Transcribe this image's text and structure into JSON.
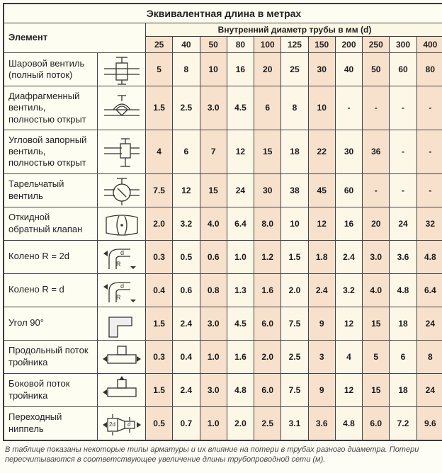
{
  "title": "Эквивалентная длина в метрах",
  "row_header": "Элемент",
  "col_group_header": "Внутренний диаметр трубы в мм (d)",
  "diameters": [
    "25",
    "40",
    "50",
    "80",
    "100",
    "125",
    "150",
    "200",
    "250",
    "300",
    "400"
  ],
  "rows": [
    {
      "name": "Шаровой вентиль (полный поток)",
      "icon": "ball-valve",
      "values": [
        "5",
        "8",
        "10",
        "16",
        "20",
        "25",
        "30",
        "40",
        "50",
        "60",
        "80"
      ]
    },
    {
      "name": "Диафрагменный вентиль, полностью открыт",
      "icon": "diaphragm-valve",
      "values": [
        "1.5",
        "2.5",
        "3.0",
        "4.5",
        "6",
        "8",
        "10",
        "-",
        "-",
        "-",
        "-"
      ]
    },
    {
      "name": "Угловой запорный вентиль, полностью открыт",
      "icon": "angle-valve",
      "values": [
        "4",
        "6",
        "7",
        "12",
        "15",
        "18",
        "22",
        "30",
        "36",
        "-",
        "-"
      ]
    },
    {
      "name": "Тарельчатый вентиль",
      "icon": "poppet-valve",
      "values": [
        "7.5",
        "12",
        "15",
        "24",
        "30",
        "38",
        "45",
        "60",
        "-",
        "-",
        "-"
      ]
    },
    {
      "name": "Откидной обратный клапан",
      "icon": "check-valve",
      "values": [
        "2.0",
        "3.2",
        "4.0",
        "6.4",
        "8.0",
        "10",
        "12",
        "16",
        "20",
        "24",
        "32"
      ]
    },
    {
      "name": "Колено R = 2d",
      "icon": "elbow-r2d",
      "values": [
        "0.3",
        "0.5",
        "0.6",
        "1.0",
        "1.2",
        "1.5",
        "1.8",
        "2.4",
        "3.0",
        "3.6",
        "4.8"
      ]
    },
    {
      "name": "Колено R = d",
      "icon": "elbow-rd",
      "values": [
        "0.4",
        "0.6",
        "0.8",
        "1.3",
        "1.6",
        "2.0",
        "2.4",
        "3.2",
        "4.0",
        "4.8",
        "6.4"
      ]
    },
    {
      "name": "Угол 90°",
      "icon": "angle-90",
      "values": [
        "1.5",
        "2.4",
        "3.0",
        "4.5",
        "6.0",
        "7.5",
        "9",
        "12",
        "15",
        "18",
        "24"
      ]
    },
    {
      "name": "Продольный поток тройника",
      "icon": "tee-through",
      "values": [
        "0.3",
        "0.4",
        "1.0",
        "1.6",
        "2.0",
        "2.5",
        "3",
        "4",
        "5",
        "6",
        "8"
      ]
    },
    {
      "name": "Боковой поток тройника",
      "icon": "tee-side",
      "values": [
        "1.5",
        "2.4",
        "3.0",
        "4.8",
        "6.0",
        "7.5",
        "9",
        "12",
        "15",
        "18",
        "24"
      ]
    },
    {
      "name": "Переходный ниппель",
      "icon": "reducer",
      "values": [
        "0.5",
        "0.7",
        "1.0",
        "2.0",
        "2.5",
        "3.1",
        "3.6",
        "4.8",
        "6.0",
        "7.2",
        "9.6"
      ]
    }
  ],
  "caption": "В таблице показаны некоторые типы арматуры и их влияние на потери в трубах разного диаметра. Потери пересчитываются в соответствующее увеличение длины трубопроводной сети (м).",
  "style": {
    "header_bg": "#fefdf2",
    "col_peach": "#f8e1cc",
    "col_cream": "#fdf7e8",
    "font_size_body": 12,
    "font_size_title": 14,
    "svg_stroke": "#333",
    "line_width": 1.2
  }
}
